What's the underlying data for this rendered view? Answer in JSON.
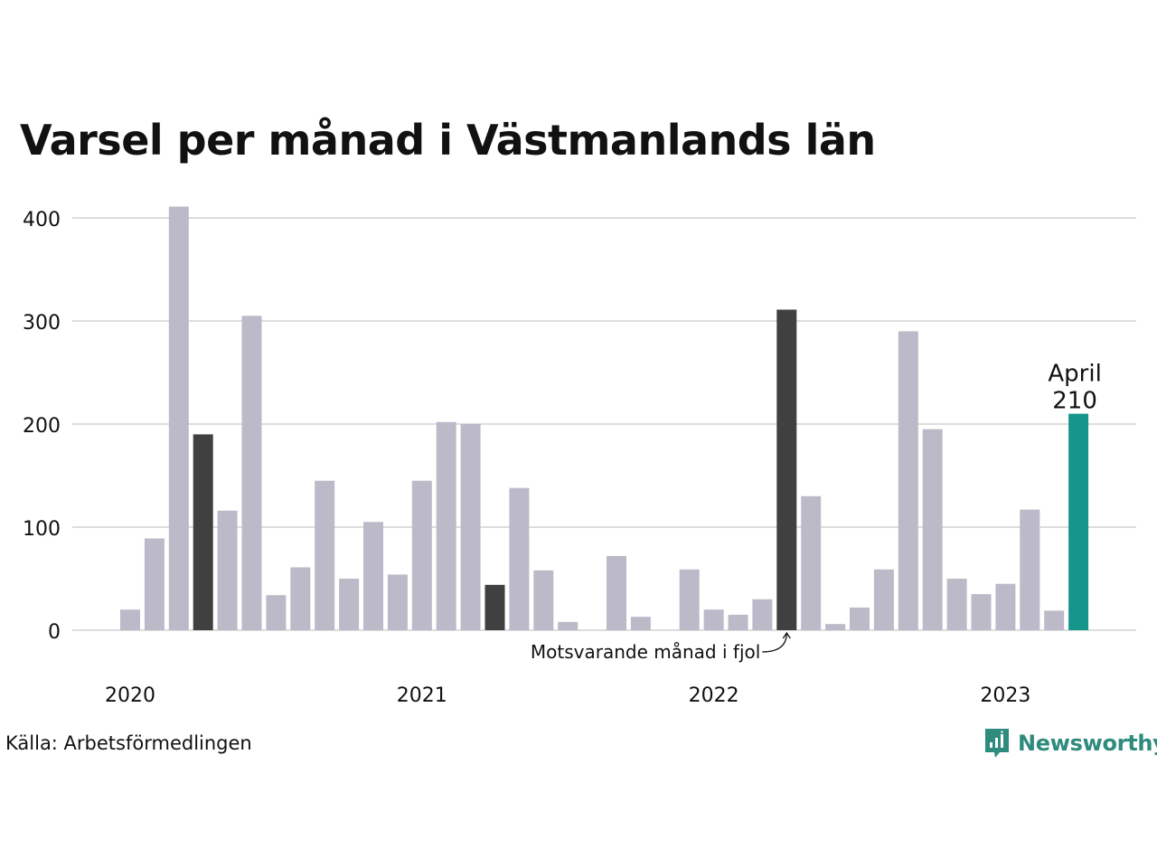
{
  "chart_data": {
    "type": "bar",
    "title": "Varsel per månad i Västmanlands län",
    "xlabel": "",
    "ylabel": "",
    "ylim": [
      0,
      420
    ],
    "yticks": [
      0,
      100,
      200,
      300,
      400
    ],
    "grid": true,
    "year_labels": [
      {
        "label": "2020",
        "index": 0
      },
      {
        "label": "2021",
        "index": 12
      },
      {
        "label": "2022",
        "index": 24
      },
      {
        "label": "2023",
        "index": 36
      }
    ],
    "categories": [
      "2020-01",
      "2020-02",
      "2020-03",
      "2020-04",
      "2020-05",
      "2020-06",
      "2020-07",
      "2020-08",
      "2020-09",
      "2020-10",
      "2020-11",
      "2020-12",
      "2021-01",
      "2021-02",
      "2021-03",
      "2021-04",
      "2021-05",
      "2021-06",
      "2021-07",
      "2021-08",
      "2021-09",
      "2021-10",
      "2021-11",
      "2021-12",
      "2022-01",
      "2022-02",
      "2022-03",
      "2022-04",
      "2022-05",
      "2022-06",
      "2022-07",
      "2022-08",
      "2022-09",
      "2022-10",
      "2022-11",
      "2022-12",
      "2023-01",
      "2023-02",
      "2023-03",
      "2023-04"
    ],
    "values": [
      20,
      89,
      411,
      190,
      116,
      305,
      34,
      61,
      145,
      50,
      105,
      54,
      145,
      202,
      200,
      44,
      138,
      58,
      8,
      0,
      72,
      13,
      0,
      59,
      20,
      15,
      30,
      311,
      130,
      6,
      22,
      59,
      290,
      195,
      50,
      35,
      45,
      117,
      19,
      210
    ],
    "highlight": {
      "same_month_indices": [
        3,
        15,
        27
      ],
      "current_index": 39
    },
    "current_label": {
      "month": "April",
      "value": "210"
    },
    "annotation": "Motsvarande månad i fjol",
    "colors": {
      "default": "#bcbac8",
      "same_month": "#404040",
      "current": "#16968a",
      "grid": "#dddddd",
      "text": "#111111"
    }
  },
  "source": "Källa: Arbetsförmedlingen",
  "brand": {
    "name": "Newsworthy",
    "color": "#2e8b7d",
    "icon": "newsworthy-logo-icon"
  }
}
